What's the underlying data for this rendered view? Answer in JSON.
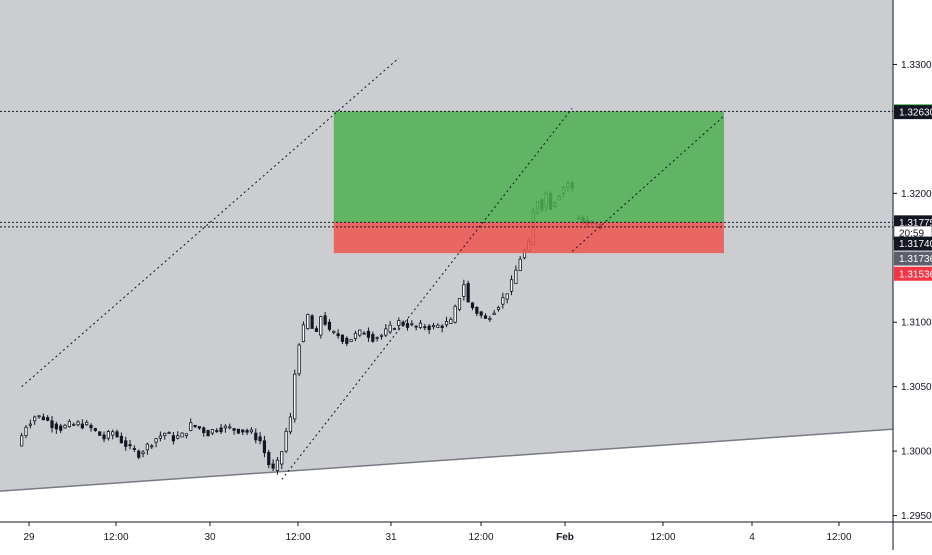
{
  "chart_data": {
    "type": "candlestick",
    "instrument_quote": "price",
    "x_ticks": [
      "29",
      "12:00",
      "30",
      "12:00",
      "31",
      "12:00",
      "Feb",
      "12:00",
      "4",
      "12:00"
    ],
    "y_ticks": [
      "1.33000",
      "1.32000",
      "1.31000",
      "1.30500",
      "1.30000",
      "1.29500"
    ],
    "y_range": [
      1.2945,
      1.335
    ],
    "x_range_hours": [
      -5,
      201
    ],
    "price_labels": [
      {
        "text": "1.32636",
        "price": 1.32636,
        "color": "#22a336",
        "text_color": "#ffffff"
      },
      {
        "text": "1.32630",
        "price": 1.3263,
        "color": "#131722",
        "text_color": "#ffffff"
      },
      {
        "text": "1.31775",
        "price": 1.31775,
        "color": "#131722",
        "text_color": "#ffffff"
      },
      {
        "text": "20:59",
        "price": 1.31692,
        "color": "#ffffff",
        "text_color": "#131722"
      },
      {
        "text": "1.31740",
        "price": 1.3161,
        "color": "#131722",
        "text_color": "#ffffff"
      },
      {
        "text": "1.31736",
        "price": 1.31494,
        "color": "#5d606b",
        "text_color": "#ffffff"
      },
      {
        "text": "1.31536",
        "price": 1.31376,
        "color": "#f23645",
        "text_color": "#ffffff"
      }
    ],
    "horizontal_lines": [
      1.32636,
      1.31775,
      1.3174
    ],
    "channel": {
      "upper": [
        [
          0,
          1.305
        ],
        [
          87,
          1.3305
        ]
      ],
      "lower": [
        [
          60,
          1.2978
        ],
        [
          127,
          1.3266
        ]
      ]
    },
    "trendline": [
      [
        -5,
        1.2969
      ],
      [
        201,
        1.3017
      ]
    ],
    "position": {
      "entry": 1.31775,
      "target": 1.32636,
      "stop": 1.31536,
      "start_hour": 72,
      "end_hour": 162,
      "profit_color": "#4caf50",
      "loss_color": "#ef5350"
    },
    "colors": {
      "shaded": "#cccdd1",
      "up": "#ffffff",
      "down": "#131722",
      "wick": "#131722",
      "axis_text": "#131722"
    },
    "candles_hourly_path": [
      [
        0,
        1.3004
      ],
      [
        2,
        1.302
      ],
      [
        4,
        1.3027
      ],
      [
        6,
        1.3026
      ],
      [
        8,
        1.3021
      ],
      [
        10,
        1.3018
      ],
      [
        12,
        1.302
      ],
      [
        14,
        1.3021
      ],
      [
        16,
        1.302
      ],
      [
        18,
        1.3015
      ],
      [
        20,
        1.301
      ],
      [
        22,
        1.3015
      ],
      [
        24,
        1.3008
      ],
      [
        26,
        1.3002
      ],
      [
        28,
        1.2998
      ],
      [
        30,
        1.3004
      ],
      [
        32,
        1.301
      ],
      [
        34,
        1.3014
      ],
      [
        36,
        1.301
      ],
      [
        38,
        1.3012
      ],
      [
        40,
        1.302
      ],
      [
        42,
        1.3018
      ],
      [
        44,
        1.3014
      ],
      [
        46,
        1.3018
      ],
      [
        48,
        1.3018
      ],
      [
        50,
        1.3017
      ],
      [
        52,
        1.3016
      ],
      [
        54,
        1.3014
      ],
      [
        56,
        1.3008
      ],
      [
        58,
        1.299
      ],
      [
        59,
        1.2985
      ],
      [
        60,
        1.299
      ],
      [
        61,
        1.3
      ],
      [
        62,
        1.3015
      ],
      [
        63,
        1.3025
      ],
      [
        64,
        1.306
      ],
      [
        65,
        1.3085
      ],
      [
        66,
        1.3095
      ],
      [
        67,
        1.3105
      ],
      [
        68,
        1.3095
      ],
      [
        69,
        1.309
      ],
      [
        70,
        1.3105
      ],
      [
        71,
        1.31
      ],
      [
        72,
        1.3092
      ],
      [
        74,
        1.309
      ],
      [
        76,
        1.3085
      ],
      [
        78,
        1.309
      ],
      [
        80,
        1.3093
      ],
      [
        82,
        1.3088
      ],
      [
        84,
        1.309
      ],
      [
        86,
        1.3095
      ],
      [
        88,
        1.31
      ],
      [
        90,
        1.3098
      ],
      [
        92,
        1.3096
      ],
      [
        94,
        1.3097
      ],
      [
        96,
        1.3096
      ],
      [
        98,
        1.3098
      ],
      [
        100,
        1.31
      ],
      [
        102,
        1.312
      ],
      [
        103,
        1.313
      ],
      [
        104,
        1.3115
      ],
      [
        106,
        1.3108
      ],
      [
        108,
        1.3102
      ],
      [
        110,
        1.311
      ],
      [
        112,
        1.3118
      ],
      [
        114,
        1.313
      ],
      [
        116,
        1.315
      ],
      [
        118,
        1.316
      ],
      [
        119,
        1.3185
      ],
      [
        120,
        1.3195
      ],
      [
        121,
        1.319
      ],
      [
        122,
        1.32
      ],
      [
        123,
        1.319
      ],
      [
        124,
        1.3195
      ],
      [
        125,
        1.32
      ],
      [
        126,
        1.3205
      ],
      [
        127,
        1.3208
      ],
      [
        128,
        1.3203
      ]
    ],
    "candles_after_gap": [
      [
        128.5,
        1.318
      ],
      [
        129.5,
        1.3181
      ],
      [
        130.5,
        1.3179
      ],
      [
        131.5,
        1.3178
      ],
      [
        132.5,
        1.3177
      ],
      [
        133.5,
        1.3176
      ],
      [
        134.5,
        1.3174
      ]
    ]
  }
}
